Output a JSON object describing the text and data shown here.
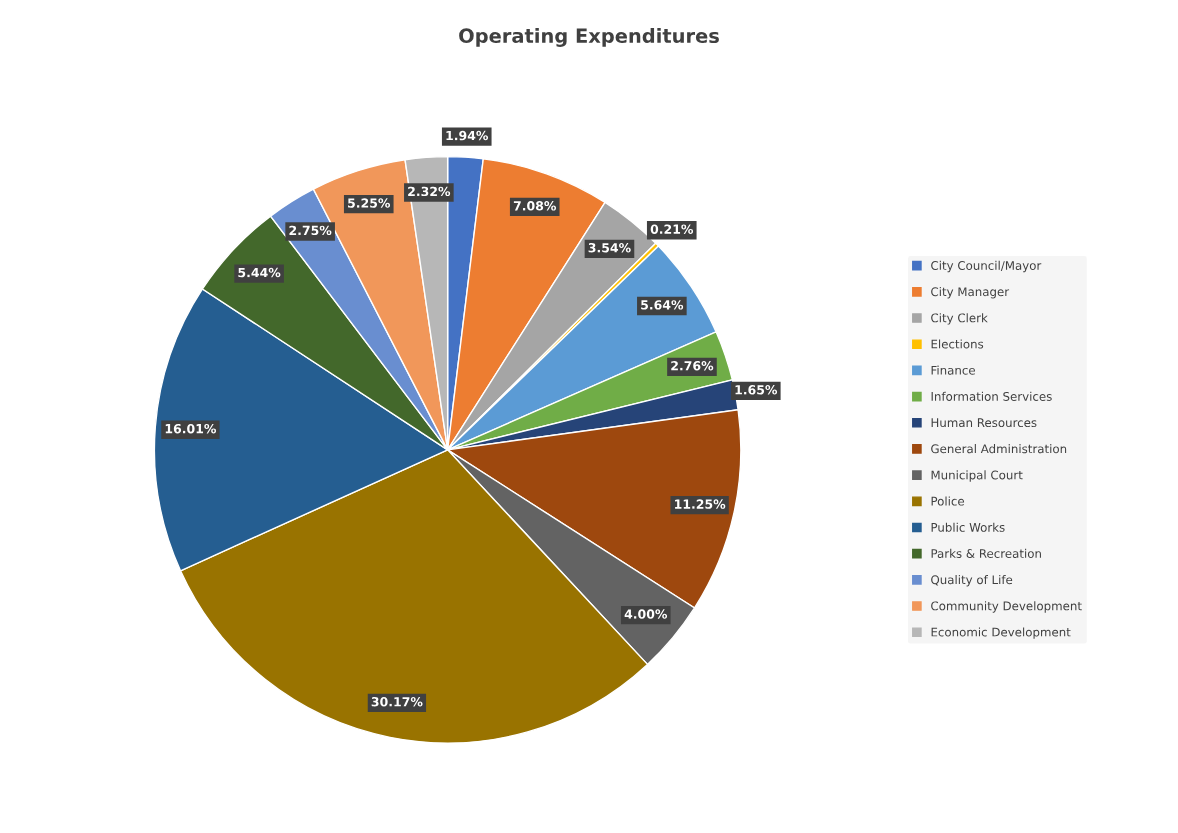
{
  "chart_data": {
    "type": "pie",
    "title": "Operating Expenditures",
    "categories": [
      "City Council/Mayor",
      "City Manager",
      "City Clerk",
      "Elections",
      "Finance",
      "Information Services",
      "Human Resources",
      "General Administration",
      "Municipal Court",
      "Police",
      "Public Works",
      "Parks & Recreation",
      "Quality of Life",
      "Community Development",
      "Economic Development"
    ],
    "values": [
      1.94,
      7.08,
      3.54,
      0.21,
      5.64,
      2.76,
      1.65,
      11.25,
      4.0,
      30.17,
      16.01,
      5.44,
      2.75,
      5.25,
      2.32
    ],
    "value_labels": [
      "1.94%",
      "7.08%",
      "3.54%",
      "0.21%",
      "5.64%",
      "2.76%",
      "1.65%",
      "11.25%",
      "4.00%",
      "30.17%",
      "16.01%",
      "5.44%",
      "2.75%",
      "5.25%",
      "2.32%"
    ],
    "colors": [
      "#4472c4",
      "#ed7d31",
      "#a5a5a5",
      "#ffc000",
      "#5b9bd5",
      "#70ad47",
      "#264478",
      "#9e480e",
      "#636363",
      "#997300",
      "#255e91",
      "#43682b",
      "#698ed0",
      "#f1975a",
      "#b7b7b7"
    ],
    "legend": "right"
  }
}
